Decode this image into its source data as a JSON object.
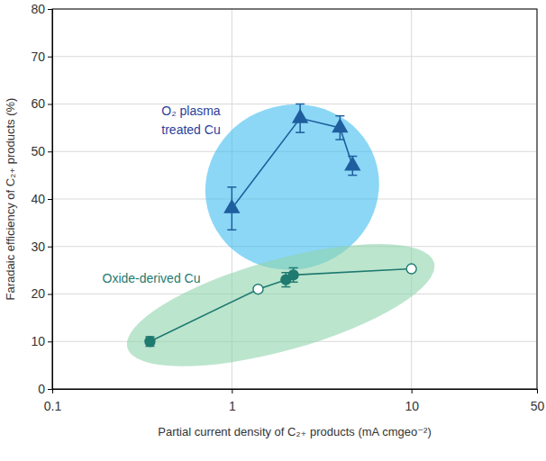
{
  "chart_data": {
    "type": "line",
    "x_label": "Partial current density of C₂₊ products (mA cmgeo⁻²)",
    "y_label": "Faradaic efficiency of C₂₊ products (%)",
    "log": "x",
    "grid": true,
    "xlim": [
      0.1,
      50
    ],
    "xticks": [
      0.1,
      1,
      10,
      50
    ],
    "ylim": [
      0,
      80
    ],
    "yticks": [
      0,
      10,
      20,
      30,
      40,
      50,
      60,
      70,
      80
    ],
    "series": [
      {
        "name": "O₂ plasma treated Cu",
        "color": "#1f5e9e",
        "marker": "triangle",
        "x": [
          1.0,
          2.4,
          4.0,
          4.7
        ],
        "values": [
          38,
          57,
          55,
          47
        ],
        "errors": [
          4.5,
          3,
          2.5,
          2
        ]
      },
      {
        "name": "Oxide-derived Cu",
        "color": "#1f7a70",
        "marker": "circle",
        "colors": [
          "#1f7a70",
          "#ffffff",
          "#1f7a70",
          "#1f7a70",
          "#ffffff"
        ],
        "x": [
          0.35,
          1.4,
          2.0,
          2.2,
          10
        ],
        "values": [
          10,
          21,
          23,
          24,
          25.3
        ],
        "errors": [
          1,
          null,
          1.5,
          1.5,
          null
        ]
      }
    ]
  }
}
